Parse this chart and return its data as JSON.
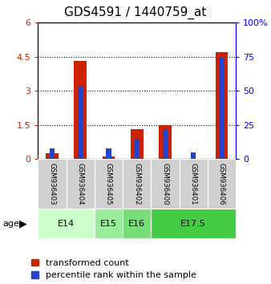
{
  "title": "GDS4591 / 1440759_at",
  "samples": [
    "GSM936403",
    "GSM936404",
    "GSM936405",
    "GSM936402",
    "GSM936400",
    "GSM936401",
    "GSM936406"
  ],
  "red_values": [
    0.25,
    4.32,
    0.1,
    1.32,
    1.5,
    0.02,
    4.72
  ],
  "blue_percentiles": [
    8,
    53,
    8,
    15,
    22,
    5,
    75
  ],
  "age_groups": [
    {
      "label": "E14",
      "start": 0,
      "end": 1,
      "color": "#ccffcc"
    },
    {
      "label": "E15",
      "start": 2,
      "end": 2,
      "color": "#99ee99"
    },
    {
      "label": "E16",
      "start": 3,
      "end": 3,
      "color": "#77dd77"
    },
    {
      "label": "E17.5",
      "start": 4,
      "end": 6,
      "color": "#44cc44"
    }
  ],
  "ylim_left": [
    0,
    6
  ],
  "ylim_right": [
    0,
    100
  ],
  "yticks_left": [
    0,
    1.5,
    3,
    4.5,
    6
  ],
  "yticks_right": [
    0,
    25,
    50,
    75,
    100
  ],
  "red_color": "#cc2200",
  "blue_color": "#2244cc",
  "title_fontsize": 11,
  "tick_fontsize": 8,
  "legend_fontsize": 8,
  "age_label": "age"
}
